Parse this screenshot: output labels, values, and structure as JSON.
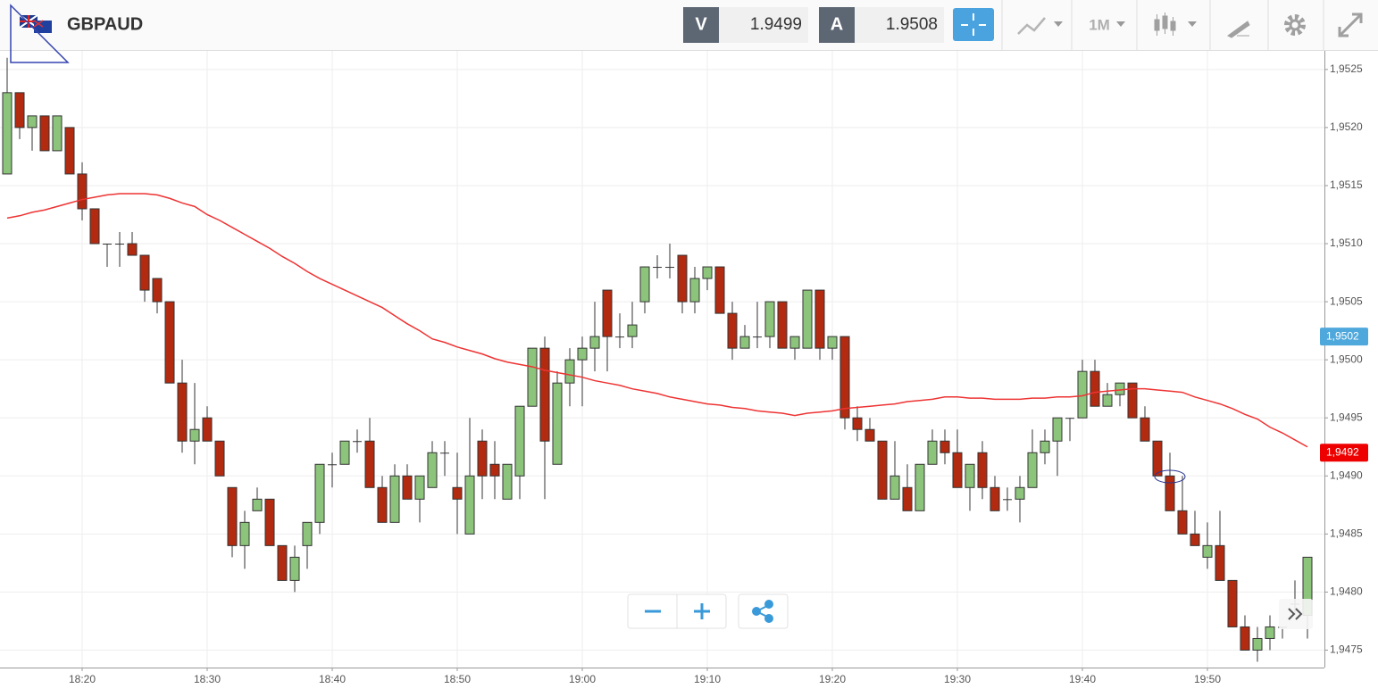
{
  "header": {
    "symbol": "GBPAUD",
    "bid_label": "V",
    "bid": "1.9499",
    "ask_label": "A",
    "ask": "1.9508",
    "timeframe": "1M"
  },
  "chart_data": {
    "type": "candlestick",
    "categories": [
      null,
      null,
      null,
      null,
      null,
      null,
      "18:20",
      null,
      null,
      null,
      null,
      null,
      null,
      null,
      null,
      null,
      "18:30",
      null,
      null,
      null,
      null,
      null,
      null,
      null,
      null,
      null,
      "18:40",
      null,
      null,
      null,
      null,
      null,
      null,
      null,
      null,
      null,
      "18:50",
      null,
      null,
      null,
      null,
      null,
      null,
      null,
      null,
      null,
      "19:00",
      null,
      null,
      null,
      null,
      null,
      null,
      null,
      null,
      null,
      "19:10",
      null,
      null,
      null,
      null,
      null,
      null,
      null,
      null,
      null,
      "19:20",
      null,
      null,
      null,
      null,
      null,
      null,
      null,
      null,
      null,
      "19:30",
      null,
      null,
      null,
      null,
      null,
      null,
      null,
      null,
      null,
      "19:40",
      null,
      null,
      null,
      null,
      null,
      null,
      null,
      null,
      null,
      "19:50",
      null,
      null,
      null,
      null,
      null,
      null,
      null,
      null
    ],
    "open": [
      1.9516,
      1.9523,
      1.952,
      1.9521,
      1.9518,
      1.952,
      1.9516,
      1.9513,
      1.951,
      1.951,
      1.951,
      1.9509,
      1.9507,
      1.9505,
      1.9498,
      1.9493,
      1.9495,
      1.9493,
      1.9489,
      1.9484,
      1.9487,
      1.9488,
      1.9484,
      1.9481,
      1.9484,
      1.9486,
      1.9491,
      1.9491,
      1.9493,
      1.9493,
      1.9489,
      1.9486,
      1.949,
      1.9488,
      1.9489,
      1.9492,
      1.9489,
      1.9485,
      1.9493,
      1.9491,
      1.9488,
      1.949,
      1.9496,
      1.9501,
      1.9491,
      1.9498,
      1.95,
      1.9501,
      1.9506,
      1.9502,
      1.9502,
      1.9505,
      1.9508,
      1.9508,
      1.9509,
      1.9505,
      1.9507,
      1.9508,
      1.9504,
      1.9501,
      1.9502,
      1.9502,
      1.9505,
      1.9501,
      1.9501,
      1.9506,
      1.9501,
      1.9502,
      1.9495,
      1.9494,
      1.9493,
      1.9488,
      1.9489,
      1.9487,
      1.9491,
      1.9493,
      1.9492,
      1.9489,
      1.9492,
      1.9489,
      1.9488,
      1.9488,
      1.9489,
      1.9492,
      1.9493,
      1.9495,
      1.9495,
      1.9499,
      1.9496,
      1.9497,
      1.9498,
      1.9495,
      1.9493,
      1.949,
      1.9487,
      1.9485,
      1.9483,
      1.9484,
      1.9481,
      1.9477,
      1.9475,
      1.9476,
      1.9477,
      1.9479,
      1.9478
    ],
    "high": [
      1.9526,
      1.9523,
      1.9521,
      1.9521,
      1.9521,
      1.952,
      1.9517,
      1.9513,
      1.951,
      1.9511,
      1.9511,
      1.9509,
      1.9507,
      1.9505,
      1.95,
      1.9498,
      1.9496,
      1.9493,
      1.9489,
      1.9487,
      1.9489,
      1.9488,
      1.9484,
      1.9484,
      1.9486,
      1.9491,
      1.9492,
      1.9493,
      1.9494,
      1.9495,
      1.949,
      1.9491,
      1.9491,
      1.949,
      1.9493,
      1.9493,
      1.9492,
      1.9495,
      1.9494,
      1.9493,
      1.9491,
      1.9496,
      1.9501,
      1.9502,
      1.9499,
      1.9501,
      1.9502,
      1.9505,
      1.9506,
      1.9504,
      1.9505,
      1.9508,
      1.9509,
      1.951,
      1.9509,
      1.9508,
      1.9508,
      1.9508,
      1.9505,
      1.9503,
      1.9505,
      1.9505,
      1.9505,
      1.9502,
      1.9506,
      1.9506,
      1.9502,
      1.9502,
      1.9496,
      1.9495,
      1.9493,
      1.9493,
      1.9491,
      1.9491,
      1.9494,
      1.9494,
      1.9494,
      1.9491,
      1.9493,
      1.949,
      1.9489,
      1.949,
      1.9494,
      1.9494,
      1.9495,
      1.9495,
      1.95,
      1.95,
      1.9498,
      1.9498,
      1.9498,
      1.9496,
      1.9493,
      1.9492,
      1.949,
      1.9487,
      1.9486,
      1.9487,
      1.9481,
      1.9478,
      1.9477,
      1.9478,
      1.9477,
      1.9481,
      1.9483
    ],
    "low": [
      1.9516,
      1.9519,
      1.9518,
      1.9518,
      1.9518,
      1.9516,
      1.9512,
      1.951,
      1.9508,
      1.9508,
      1.9509,
      1.9505,
      1.9504,
      1.9498,
      1.9492,
      1.9491,
      1.9493,
      1.949,
      1.9483,
      1.9482,
      1.9487,
      1.9484,
      1.9481,
      1.948,
      1.9482,
      1.9485,
      1.9489,
      1.9491,
      1.9492,
      1.9489,
      1.9486,
      1.9486,
      1.9488,
      1.9486,
      1.9489,
      1.949,
      1.9485,
      1.9485,
      1.9488,
      1.9488,
      1.9488,
      1.9488,
      1.9496,
      1.9488,
      1.9491,
      1.9496,
      1.9496,
      1.9499,
      1.9499,
      1.9501,
      1.9501,
      1.9504,
      1.9507,
      1.9507,
      1.9504,
      1.9504,
      1.9506,
      1.9504,
      1.95,
      1.9501,
      1.9501,
      1.9501,
      1.9501,
      1.95,
      1.9501,
      1.95,
      1.95,
      1.9494,
      1.9493,
      1.9493,
      1.9488,
      1.9488,
      1.9487,
      1.9487,
      1.9491,
      1.9491,
      1.9489,
      1.9487,
      1.9488,
      1.9487,
      1.9487,
      1.9486,
      1.9489,
      1.9491,
      1.949,
      1.9493,
      1.9495,
      1.9496,
      1.9496,
      1.9496,
      1.9495,
      1.9493,
      1.949,
      1.9487,
      1.9485,
      1.9484,
      1.9482,
      1.9481,
      1.9477,
      1.9475,
      1.9474,
      1.9475,
      1.9476,
      1.9478,
      1.9476
    ],
    "close": [
      1.9523,
      1.952,
      1.9521,
      1.9518,
      1.9521,
      1.9516,
      1.9513,
      1.951,
      1.951,
      1.951,
      1.9509,
      1.9506,
      1.9505,
      1.9498,
      1.9493,
      1.9494,
      1.9493,
      1.949,
      1.9484,
      1.9486,
      1.9488,
      1.9484,
      1.9481,
      1.9483,
      1.9486,
      1.9491,
      1.9491,
      1.9493,
      1.9493,
      1.9489,
      1.9486,
      1.949,
      1.9488,
      1.949,
      1.9492,
      1.9492,
      1.9488,
      1.949,
      1.949,
      1.949,
      1.9491,
      1.9496,
      1.9501,
      1.9493,
      1.9498,
      1.95,
      1.9501,
      1.9502,
      1.9502,
      1.9502,
      1.9503,
      1.9508,
      1.9508,
      1.9508,
      1.9505,
      1.9507,
      1.9508,
      1.9504,
      1.9501,
      1.9502,
      1.9502,
      1.9505,
      1.9501,
      1.9502,
      1.9506,
      1.9501,
      1.9502,
      1.9495,
      1.9494,
      1.9493,
      1.9488,
      1.949,
      1.9487,
      1.9491,
      1.9493,
      1.9492,
      1.9489,
      1.9491,
      1.9489,
      1.9487,
      1.9488,
      1.9489,
      1.9492,
      1.9493,
      1.9495,
      1.9495,
      1.9499,
      1.9496,
      1.9497,
      1.9498,
      1.9495,
      1.9493,
      1.949,
      1.9487,
      1.9485,
      1.9484,
      1.9484,
      1.9481,
      1.9477,
      1.9475,
      1.9476,
      1.9477,
      1.9477,
      1.9479,
      1.9483
    ],
    "up_color": "#8dc47c",
    "down_color": "#b22a10",
    "moving_average": {
      "color": "#ee3333",
      "values": [
        1.95122,
        1.95124,
        1.95127,
        1.95129,
        1.95132,
        1.95135,
        1.95138,
        1.9514,
        1.95142,
        1.95143,
        1.95143,
        1.95143,
        1.95142,
        1.95139,
        1.95135,
        1.95132,
        1.95125,
        1.9512,
        1.95114,
        1.95108,
        1.95102,
        1.95096,
        1.95089,
        1.95083,
        1.95076,
        1.9507,
        1.95065,
        1.9506,
        1.95055,
        1.9505,
        1.95045,
        1.95038,
        1.95031,
        1.95025,
        1.95018,
        1.95015,
        1.95011,
        1.95008,
        1.95005,
        1.95001,
        1.94998,
        1.94996,
        1.94994,
        1.94991,
        1.94989,
        1.94987,
        1.94985,
        1.94982,
        1.9498,
        1.94978,
        1.94975,
        1.94973,
        1.94971,
        1.94968,
        1.94966,
        1.94964,
        1.94962,
        1.94961,
        1.94959,
        1.94958,
        1.94956,
        1.94955,
        1.94954,
        1.94952,
        1.94954,
        1.94955,
        1.94956,
        1.94958,
        1.94959,
        1.9496,
        1.94961,
        1.94962,
        1.94964,
        1.94965,
        1.94966,
        1.94968,
        1.94968,
        1.94967,
        1.94967,
        1.94966,
        1.94966,
        1.94966,
        1.94967,
        1.94967,
        1.94968,
        1.94968,
        1.94969,
        1.94972,
        1.94973,
        1.94974,
        1.94975,
        1.94975,
        1.94974,
        1.94973,
        1.94972,
        1.94968,
        1.94965,
        1.94962,
        1.94958,
        1.94953,
        1.94949,
        1.94942,
        1.94937,
        1.94931,
        1.94925
      ]
    },
    "ylim": [
      1.94735,
      1.95266
    ],
    "yticks": [
      {
        "value": 1.9475,
        "label": "1,9475"
      },
      {
        "value": 1.948,
        "label": "1,9480"
      },
      {
        "value": 1.9485,
        "label": "1,9485"
      },
      {
        "value": 1.949,
        "label": "1,9490"
      },
      {
        "value": 1.9495,
        "label": "1,9495"
      },
      {
        "value": 1.95,
        "label": "1,9500"
      },
      {
        "value": 1.9505,
        "label": "1,9505"
      },
      {
        "value": 1.951,
        "label": "1,9510"
      },
      {
        "value": 1.9515,
        "label": "1,9515"
      },
      {
        "value": 1.952,
        "label": "1,9520"
      },
      {
        "value": 1.9525,
        "label": "1,9525"
      }
    ],
    "price_tags": [
      {
        "value": 1.9502,
        "label": "1,9502",
        "color": "#4fa8dc"
      },
      {
        "value": 1.9492,
        "label": "1,9492",
        "color": "#ee0000"
      }
    ],
    "grid": true
  }
}
